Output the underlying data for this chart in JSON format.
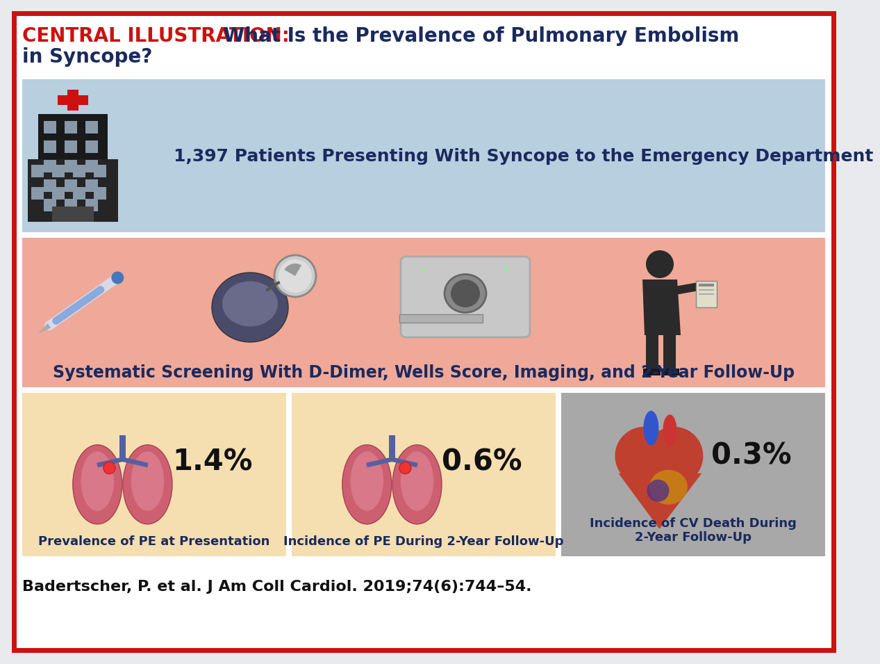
{
  "title_red": "CENTRAL ILLUSTRATION:",
  "title_blue_1": " What Is the Prevalence of Pulmonary Embolism",
  "title_blue_2": "in Syncope?",
  "title_fontsize": 20,
  "outer_bg": "#e8eaed",
  "border_color": "#cc1111",
  "header_bg": "#dce6f0",
  "panel1_bg": "#b8cfe0",
  "panel2_bg": "#f0a898",
  "panel3a_bg": "#f5dfb0",
  "panel3b_bg": "#f5dfb0",
  "panel3c_bg": "#a8a8a8",
  "panel1_text": "1,397 Patients Presenting With Syncope to the Emergency Department",
  "panel2_text": "Systematic Screening With D-Dimer, Wells Score, Imaging, and 2-Year Follow-Up",
  "stat1": "1.4%",
  "stat2": "0.6%",
  "stat3": "0.3%",
  "label1": "Prevalence of PE at Presentation",
  "label2": "Incidence of PE During 2-Year Follow-Up",
  "label3": "Incidence of CV Death During\n2-Year Follow-Up",
  "citation": "Badertscher, P. et al. J Am Coll Cardiol. 2019;74(6):744–54.",
  "red_color": "#cc1111",
  "dark_blue": "#1a2a5e",
  "text_dark": "#111111",
  "dark_gray": "#333333",
  "stat_fontsize": 30,
  "label_fontsize": 13,
  "panel_text_fontsize": 17,
  "p1_text_fs": 18
}
